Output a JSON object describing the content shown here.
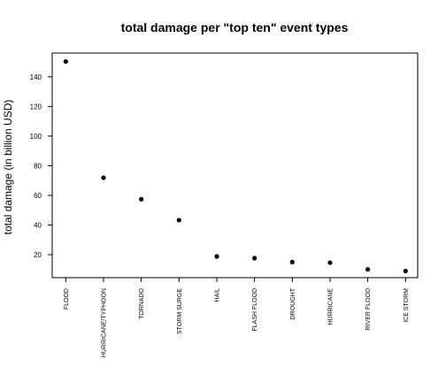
{
  "chart_data": {
    "type": "scatter",
    "title": "total damage per \"top ten\" event types",
    "xlabel": "",
    "ylabel": "total damage (in billion USD)",
    "categories": [
      "FLOOD",
      "HURRICANE/TYPHOON",
      "TORNADO",
      "STORM SURGE",
      "HAIL",
      "FLASH FLOOD",
      "DROUGHT",
      "HURRICANE",
      "RIVER FLOOD",
      "ICE STORM"
    ],
    "values": [
      150.3,
      71.9,
      57.4,
      43.3,
      18.8,
      17.6,
      15.0,
      14.6,
      10.1,
      8.97
    ],
    "ylim": [
      4.5,
      156
    ],
    "yticks": [
      20,
      40,
      60,
      80,
      100,
      120,
      140
    ],
    "ytick_labels": [
      "20",
      "40",
      "60",
      "80",
      "100",
      "120",
      "140"
    ],
    "grid": false,
    "marker_color": "#000000"
  }
}
